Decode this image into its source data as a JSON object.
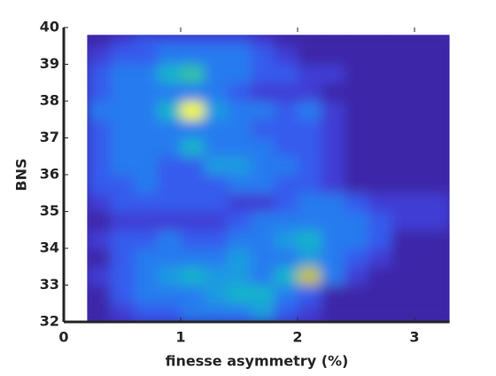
{
  "chart_data": {
    "type": "heatmap",
    "x_label": "finesse asymmetry (%)",
    "y_label": "BNS",
    "xlim": [
      0,
      3.3
    ],
    "xticks": [
      0,
      1,
      2,
      3
    ],
    "ylim": [
      32,
      40
    ],
    "yticks": [
      32,
      33,
      34,
      35,
      36,
      37,
      38,
      39,
      40
    ],
    "xbins": [
      0.2,
      0.4,
      0.6,
      0.8,
      1.0,
      1.2,
      1.4,
      1.6,
      1.8,
      2.0,
      2.2,
      2.4,
      2.6,
      2.8,
      3.3
    ],
    "ybins": [
      32,
      32.5,
      33,
      33.5,
      34,
      34.5,
      35,
      35.5,
      36,
      36.5,
      37,
      37.5,
      38,
      38.5,
      39,
      39.5,
      39.8
    ],
    "values": [
      [
        0,
        1,
        2,
        2,
        3,
        3,
        3,
        4,
        2,
        1,
        0,
        0,
        0,
        0
      ],
      [
        0,
        2,
        3,
        3,
        3,
        4,
        5,
        5,
        3,
        2,
        0,
        0,
        0,
        0
      ],
      [
        1,
        2,
        3,
        4,
        5,
        4,
        4,
        3,
        5,
        8,
        3,
        1,
        0,
        0
      ],
      [
        0,
        2,
        3,
        3,
        3,
        3,
        4,
        3,
        3,
        4,
        3,
        2,
        1,
        0
      ],
      [
        1,
        2,
        2,
        3,
        2,
        2,
        3,
        3,
        4,
        5,
        3,
        3,
        2,
        0
      ],
      [
        0,
        1,
        1,
        1,
        1,
        1,
        2,
        3,
        3,
        3,
        3,
        3,
        2,
        1
      ],
      [
        1,
        2,
        2,
        2,
        2,
        2,
        1,
        1,
        2,
        3,
        3,
        2,
        1,
        1
      ],
      [
        2,
        2,
        3,
        2,
        2,
        2,
        3,
        3,
        2,
        2,
        1,
        0,
        0,
        0
      ],
      [
        2,
        3,
        3,
        2,
        2,
        4,
        4,
        3,
        3,
        2,
        1,
        0,
        0,
        0
      ],
      [
        2,
        3,
        3,
        3,
        5,
        3,
        3,
        3,
        2,
        2,
        1,
        0,
        0,
        0
      ],
      [
        2,
        3,
        3,
        3,
        3,
        3,
        3,
        2,
        2,
        2,
        1,
        0,
        0,
        0
      ],
      [
        3,
        3,
        3,
        5,
        10,
        4,
        3,
        3,
        2,
        3,
        1,
        0,
        0,
        0
      ],
      [
        2,
        3,
        3,
        3,
        3,
        3,
        2,
        1,
        1,
        1,
        0,
        0,
        0,
        0
      ],
      [
        2,
        3,
        3,
        5,
        6,
        3,
        3,
        2,
        2,
        1,
        1,
        0,
        0,
        0
      ],
      [
        1,
        2,
        2,
        3,
        3,
        3,
        3,
        2,
        1,
        0,
        0,
        0,
        0,
        0
      ],
      [
        0,
        1,
        2,
        2,
        2,
        2,
        2,
        1,
        0,
        0,
        0,
        0,
        0,
        0
      ]
    ],
    "clim": [
      0,
      10
    ],
    "colormap": [
      "#3e26a8",
      "#4143e0",
      "#2f6bf5",
      "#1b95e6",
      "#16b4ca",
      "#3bc69a",
      "#a5c540",
      "#f0b936",
      "#f9fb0e"
    ]
  }
}
